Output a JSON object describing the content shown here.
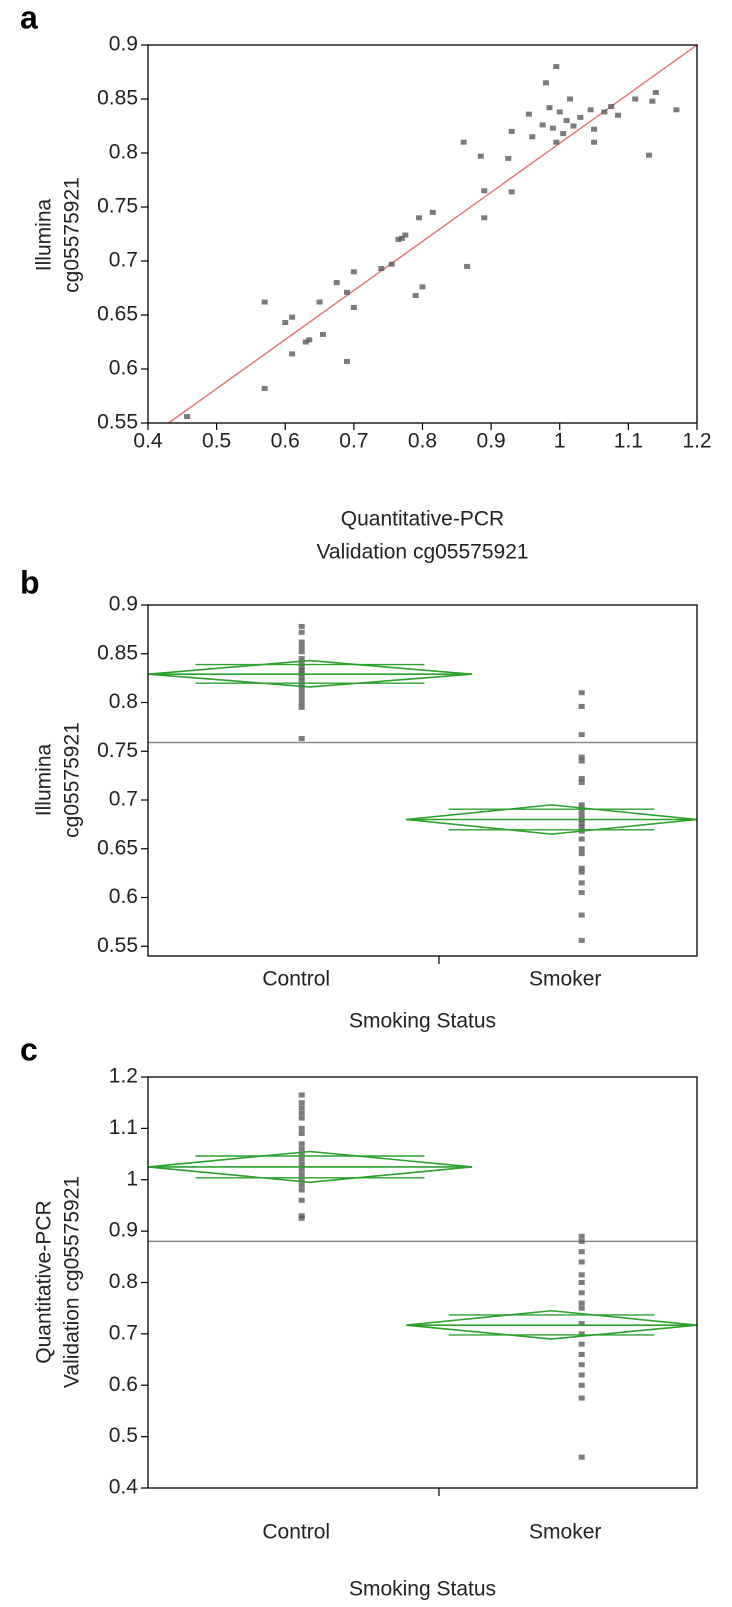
{
  "chart_data": [
    {
      "type": "scatter",
      "panel_label": "a",
      "xlabel": [
        "Quantitative-PCR",
        "Validation cg05575921"
      ],
      "ylabel": [
        "Illumina",
        "cg05575921"
      ],
      "xlim": [
        0.4,
        1.2
      ],
      "xticks": [
        0.4,
        0.5,
        0.6,
        0.7,
        0.8,
        0.9,
        1,
        1.1,
        1.2
      ],
      "ylim": [
        0.55,
        0.9
      ],
      "yticks": [
        0.55,
        0.6,
        0.65,
        0.7,
        0.75,
        0.8,
        0.85,
        0.9
      ],
      "point_color": "#5a5a5a",
      "x": [
        0.457,
        0.57,
        0.57,
        0.6,
        0.61,
        0.61,
        0.63,
        0.635,
        0.65,
        0.655,
        0.675,
        0.69,
        0.69,
        0.7,
        0.7,
        0.74,
        0.755,
        0.765,
        0.77,
        0.775,
        0.79,
        0.795,
        0.8,
        0.815,
        0.86,
        0.865,
        0.885,
        0.89,
        0.89,
        0.925,
        0.93,
        0.93,
        0.955,
        0.96,
        0.975,
        0.98,
        0.985,
        0.99,
        0.995,
        0.995,
        1.0,
        1.005,
        1.01,
        1.015,
        1.02,
        1.03,
        1.045,
        1.05,
        1.05,
        1.065,
        1.075,
        1.085,
        1.11,
        1.13,
        1.135,
        1.14,
        1.17
      ],
      "y": [
        0.556,
        0.662,
        0.582,
        0.643,
        0.648,
        0.614,
        0.625,
        0.627,
        0.662,
        0.632,
        0.68,
        0.607,
        0.671,
        0.69,
        0.657,
        0.693,
        0.697,
        0.72,
        0.721,
        0.724,
        0.668,
        0.74,
        0.676,
        0.745,
        0.81,
        0.695,
        0.797,
        0.765,
        0.74,
        0.795,
        0.82,
        0.764,
        0.836,
        0.815,
        0.826,
        0.865,
        0.842,
        0.823,
        0.88,
        0.81,
        0.838,
        0.818,
        0.83,
        0.85,
        0.825,
        0.833,
        0.84,
        0.822,
        0.81,
        0.838,
        0.843,
        0.835,
        0.85,
        0.798,
        0.848,
        0.856,
        0.84
      ],
      "fit_line": {
        "x": [
          0.43,
          1.2
        ],
        "y": [
          0.55,
          0.9
        ],
        "color": "#e07b7b"
      }
    },
    {
      "type": "oneway",
      "panel_label": "b",
      "xlabel": [
        "Smoking Status"
      ],
      "ylabel": [
        "Illumina",
        "cg05575921"
      ],
      "categories": [
        "Control",
        "Smoker"
      ],
      "ylim": [
        0.54,
        0.9
      ],
      "yticks": [
        0.55,
        0.6,
        0.65,
        0.7,
        0.75,
        0.8,
        0.85,
        0.9
      ],
      "grand_mean": 0.759,
      "point_color": "#5a5a5a",
      "diamond_color": "#2ca02c",
      "mean_line_color": "#888888",
      "groups": [
        {
          "values": [
            0.878,
            0.872,
            0.862,
            0.857,
            0.852,
            0.845,
            0.84,
            0.836,
            0.833,
            0.83,
            0.826,
            0.822,
            0.818,
            0.815,
            0.81,
            0.805,
            0.8,
            0.795,
            0.763
          ],
          "mean": 0.829,
          "ci": [
            0.816,
            0.843
          ]
        },
        {
          "values": [
            0.81,
            0.796,
            0.767,
            0.744,
            0.74,
            0.722,
            0.718,
            0.695,
            0.69,
            0.685,
            0.68,
            0.676,
            0.672,
            0.668,
            0.66,
            0.65,
            0.645,
            0.63,
            0.626,
            0.615,
            0.605,
            0.582,
            0.556
          ],
          "mean": 0.68,
          "ci": [
            0.665,
            0.695
          ]
        }
      ]
    },
    {
      "type": "oneway",
      "panel_label": "c",
      "xlabel": [
        "Smoking Status"
      ],
      "ylabel": [
        "Quantitative-PCR",
        "Validation cg05575921"
      ],
      "categories": [
        "Control",
        "Smoker"
      ],
      "ylim": [
        0.4,
        1.2
      ],
      "yticks": [
        0.4,
        0.5,
        0.6,
        0.7,
        0.8,
        0.9,
        1,
        1.1,
        1.2
      ],
      "grand_mean": 0.88,
      "point_color": "#5a5a5a",
      "diamond_color": "#2ca02c",
      "mean_line_color": "#888888",
      "groups": [
        {
          "values": [
            1.165,
            1.15,
            1.14,
            1.13,
            1.12,
            1.1,
            1.09,
            1.07,
            1.06,
            1.05,
            1.04,
            1.03,
            1.02,
            1.01,
            1.0,
            0.99,
            0.98,
            0.96,
            0.93,
            0.925
          ],
          "mean": 1.025,
          "ci": [
            0.995,
            1.055
          ]
        },
        {
          "values": [
            0.89,
            0.88,
            0.86,
            0.84,
            0.815,
            0.8,
            0.78,
            0.76,
            0.75,
            0.72,
            0.7,
            0.68,
            0.66,
            0.64,
            0.62,
            0.6,
            0.575,
            0.46
          ],
          "mean": 0.717,
          "ci": [
            0.69,
            0.745
          ]
        }
      ]
    }
  ]
}
